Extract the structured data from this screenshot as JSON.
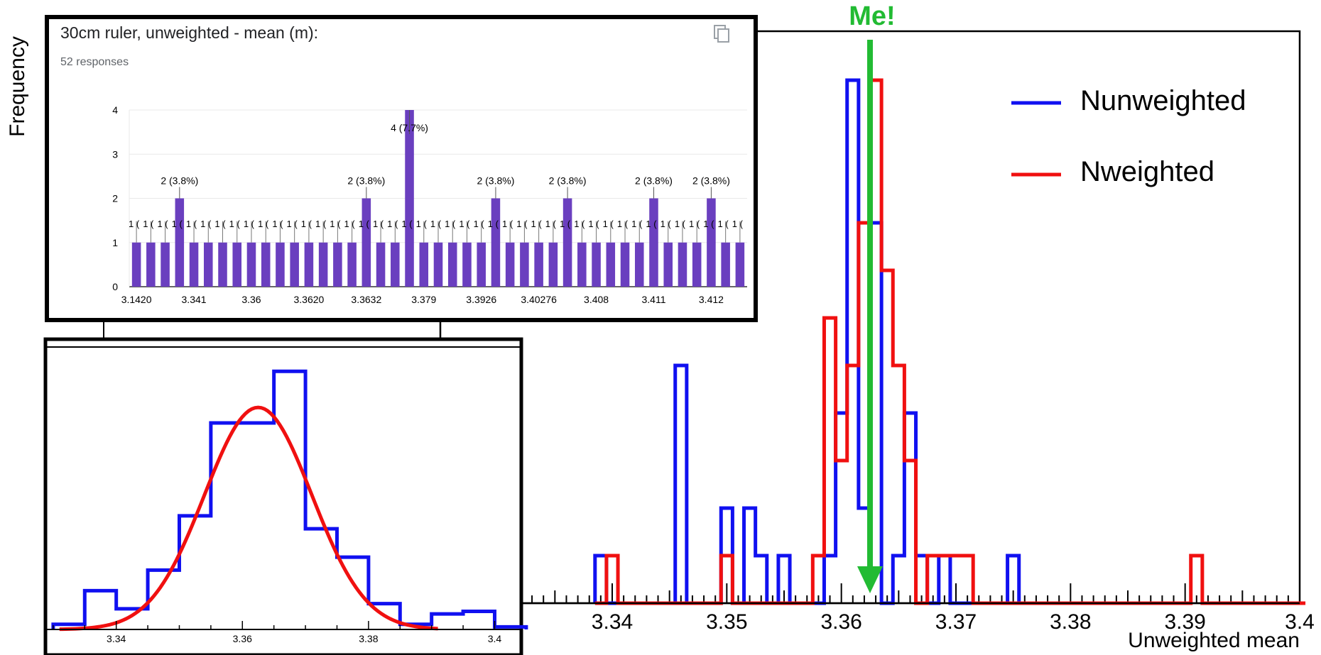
{
  "colors": {
    "unweighted": "#1010f0",
    "weighted": "#f01010",
    "marker": "#22bb33",
    "google_bar": "#6a3fbf",
    "frame": "#000000",
    "grid": "#e8e8e8"
  },
  "chart_data": [
    {
      "id": "main",
      "type": "histogram",
      "ylabel": "Frequency",
      "xlabel": "Unweighted mean",
      "xlim": [
        3.325,
        3.4
      ],
      "ylim": [
        0,
        12
      ],
      "x_ticks": [
        3.34,
        3.35,
        3.36,
        3.37,
        3.38,
        3.39,
        3.4
      ],
      "x_tick_labels": [
        "3.34",
        "3.35",
        "3.36",
        "3.37",
        "3.38",
        "3.39",
        "3.4"
      ],
      "bin_start": 3.3385,
      "bin_width": 0.001,
      "series": [
        {
          "name": "Nunweighted",
          "values": [
            1,
            0,
            0,
            0,
            0,
            0,
            0,
            5,
            0,
            0,
            0,
            2,
            0,
            2,
            1,
            0,
            1,
            0,
            0,
            0,
            1,
            4,
            11,
            2,
            8,
            0,
            1,
            4,
            1,
            0,
            1,
            0,
            0,
            0,
            0,
            0,
            1
          ]
        },
        {
          "name": "Nweighted",
          "values": [
            0,
            1,
            0,
            0,
            0,
            0,
            0,
            0,
            0,
            0,
            0,
            1,
            0,
            0,
            0,
            0,
            0,
            0,
            0,
            1,
            6,
            3,
            5,
            8,
            11,
            7,
            5,
            3,
            0,
            1,
            1,
            1,
            1,
            0,
            0,
            0,
            0,
            0,
            0,
            0,
            0,
            0,
            0,
            0,
            0,
            0,
            0,
            0,
            0,
            0,
            0,
            0,
            1,
            0,
            0,
            0,
            0,
            0,
            0,
            0,
            0,
            0
          ]
        }
      ],
      "annotation": {
        "label": "Me!",
        "x": 3.3625
      },
      "legend": {
        "position": "top-right",
        "entries": [
          "Nunweighted",
          "Nweighted"
        ]
      }
    },
    {
      "id": "google-form",
      "type": "bar",
      "title": "30cm ruler, unweighted - mean (m):",
      "subtitle": "52 responses",
      "ylim": [
        0,
        4
      ],
      "y_ticks": [
        0,
        1,
        2,
        3,
        4
      ],
      "values": [
        1,
        1,
        1,
        2,
        1,
        1,
        1,
        1,
        1,
        1,
        1,
        1,
        1,
        1,
        1,
        1,
        2,
        1,
        1,
        4,
        1,
        1,
        1,
        1,
        1,
        2,
        1,
        1,
        1,
        1,
        2,
        1,
        1,
        1,
        1,
        1,
        2,
        1,
        1,
        1,
        2,
        1,
        1
      ],
      "bar_labels": [
        {
          "index": 3,
          "label": "2 (3.8%)"
        },
        {
          "index": 16,
          "label": "2 (3.8%)"
        },
        {
          "index": 19,
          "label": "4 (7.7%)"
        },
        {
          "index": 25,
          "label": "2 (3.8%)"
        },
        {
          "index": 30,
          "label": "2 (3.8%)"
        },
        {
          "index": 36,
          "label": "2 (3.8%)"
        },
        {
          "index": 40,
          "label": "2 (3.8%)"
        }
      ],
      "one_label": "1 (",
      "x_tick_labels": [
        {
          "index": 0,
          "label": "3.1420"
        },
        {
          "index": 4,
          "label": "3.341"
        },
        {
          "index": 8,
          "label": "3.36"
        },
        {
          "index": 12,
          "label": "3.3620"
        },
        {
          "index": 16,
          "label": "3.3632"
        },
        {
          "index": 20,
          "label": "3.379"
        },
        {
          "index": 24,
          "label": "3.3926"
        },
        {
          "index": 28,
          "label": "3.40276"
        },
        {
          "index": 32,
          "label": "3.408"
        },
        {
          "index": 36,
          "label": "3.411"
        },
        {
          "index": 40,
          "label": "3.412"
        }
      ]
    },
    {
      "id": "zoom-fit",
      "type": "histogram",
      "xlim": [
        3.329,
        3.404
      ],
      "ylim": [
        0,
        10.5
      ],
      "x_ticks": [
        3.34,
        3.36,
        3.38,
        3.4
      ],
      "x_tick_labels": [
        "3.34",
        "3.36",
        "3.38",
        "3.4"
      ],
      "bin_start": 3.33,
      "bin_width": 0.005,
      "series": [
        {
          "name": "histogram",
          "values": [
            0.2,
            1.5,
            0.8,
            2.3,
            4.4,
            8.0,
            8.0,
            10.0,
            3.9,
            2.8,
            1.0,
            0.2,
            0.6,
            0.7,
            0.1
          ]
        },
        {
          "name": "fit",
          "mean": 3.3625,
          "sigma": 0.0085,
          "amplitude": 8.6,
          "x_range": [
            3.331,
            3.391
          ]
        }
      ]
    }
  ]
}
